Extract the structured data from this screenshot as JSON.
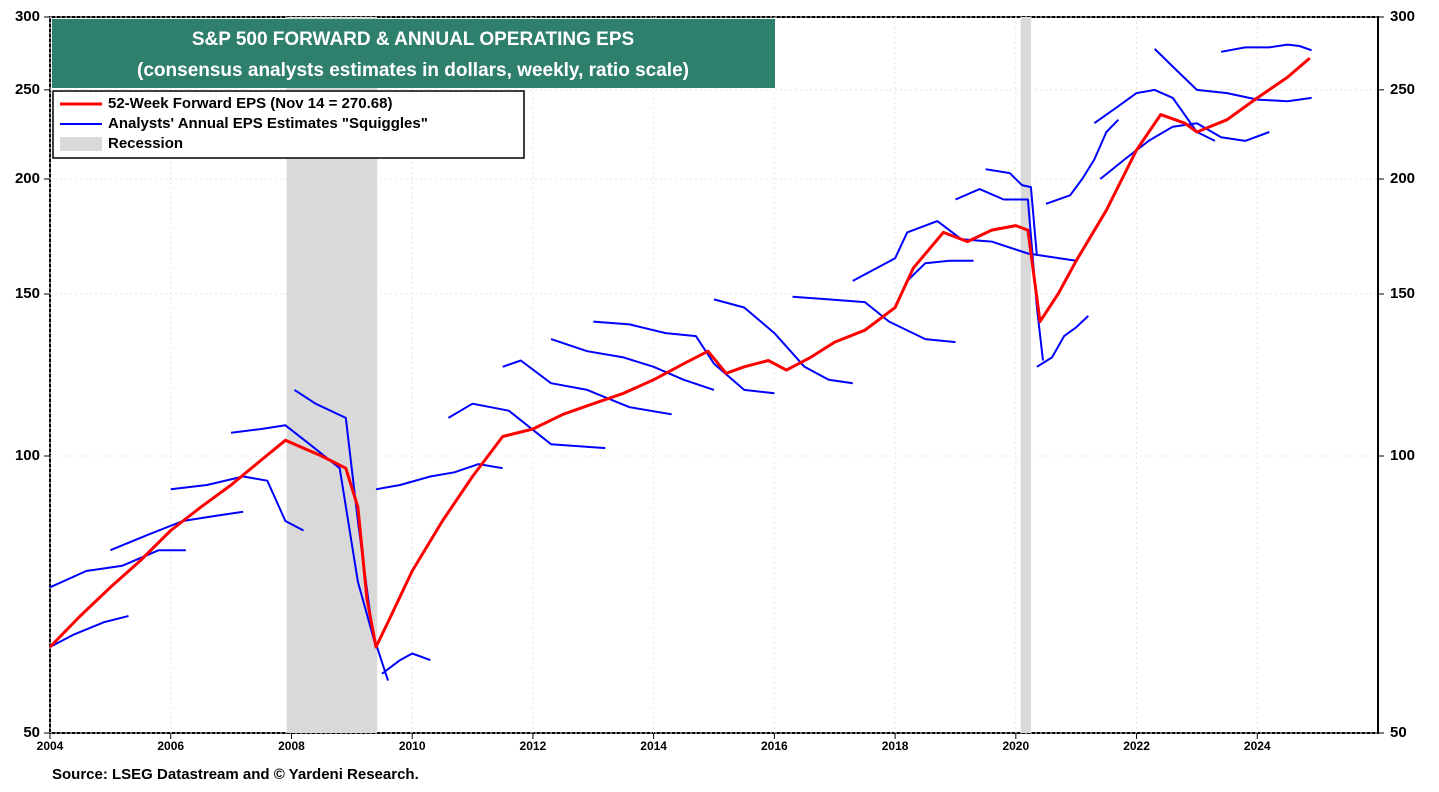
{
  "chart_data": {
    "type": "line",
    "title": "S&P 500 FORWARD & ANNUAL OPERATING EPS",
    "subtitle": "(consensus analysts estimates in dollars, weekly, ratio scale)",
    "source": "Source: LSEG Datastream and © Yardeni Research.",
    "log_scale": true,
    "grid": true,
    "xlim": [
      2004,
      2026
    ],
    "xticks": [
      2004,
      2006,
      2008,
      2010,
      2012,
      2014,
      2016,
      2018,
      2020,
      2022,
      2024
    ],
    "ylim": [
      50,
      300
    ],
    "yticks": [
      50,
      100,
      150,
      200,
      250,
      300
    ],
    "recession_name": "Recession",
    "recession_color": "#d9d9d9",
    "recessions": [
      [
        2007.92,
        2009.42
      ],
      [
        2020.08,
        2020.25
      ]
    ],
    "series": [
      {
        "name": "52-Week Forward EPS (Nov 14 = 270.68)",
        "color": "#ff0000",
        "width": 3,
        "x": [
          2004.0,
          2004.5,
          2005.0,
          2005.5,
          2006.0,
          2006.5,
          2007.0,
          2007.5,
          2007.9,
          2008.2,
          2008.5,
          2008.9,
          2009.1,
          2009.25,
          2009.4,
          2009.6,
          2010.0,
          2010.5,
          2011.0,
          2011.5,
          2012.0,
          2012.5,
          2013.0,
          2013.5,
          2014.0,
          2014.5,
          2014.9,
          2015.2,
          2015.5,
          2015.9,
          2016.2,
          2016.6,
          2017.0,
          2017.5,
          2018.0,
          2018.3,
          2018.8,
          2019.2,
          2019.6,
          2020.0,
          2020.2,
          2020.4,
          2020.7,
          2021.0,
          2021.5,
          2022.0,
          2022.4,
          2022.8,
          2023.0,
          2023.5,
          2024.0,
          2024.5,
          2024.87
        ],
        "values": [
          62,
          67,
          72,
          77,
          83,
          88,
          93,
          99,
          104,
          102,
          100,
          97,
          88,
          70,
          62,
          66,
          75,
          85,
          95,
          105,
          107,
          111,
          114,
          117,
          121,
          126,
          130,
          123,
          125,
          127,
          124,
          128,
          133,
          137,
          145,
          160,
          175,
          171,
          176,
          178,
          176,
          140,
          150,
          163,
          185,
          215,
          235,
          230,
          225,
          232,
          245,
          258,
          270.68
        ]
      },
      {
        "name": "Analysts' Annual EPS Estimates \"Squiggles\"",
        "color": "#0000ff",
        "width": 2,
        "x": [
          2004.0,
          2004.4,
          2004.9,
          2005.3,
          2004.0,
          2004.0,
          2004.6,
          2005.2,
          2005.8,
          2006.25,
          2005.0,
          2005.0,
          2005.6,
          2006.2,
          2006.7,
          2007.2,
          2006.0,
          2006.0,
          2006.6,
          2007.2,
          2007.6,
          2007.9,
          2008.2,
          2007.0,
          2007.0,
          2007.5,
          2007.9,
          2008.3,
          2008.8,
          2009.1,
          2009.4,
          2008.05,
          2008.05,
          2008.4,
          2008.9,
          2009.1,
          2009.35,
          2009.6,
          2009.5,
          2009.5,
          2009.8,
          2010.0,
          2010.3,
          2009.4,
          2009.4,
          2009.8,
          2010.3,
          2010.7,
          2011.1,
          2011.5,
          2010.6,
          2010.6,
          2011.0,
          2011.6,
          2012.3,
          2013.2,
          2011.5,
          2011.5,
          2011.8,
          2012.3,
          2012.9,
          2013.6,
          2014.3,
          2012.3,
          2012.3,
          2012.9,
          2013.5,
          2014.0,
          2014.5,
          2015.0,
          2013.0,
          2013.0,
          2013.6,
          2014.2,
          2014.7,
          2015.0,
          2015.5,
          2016.0,
          2015.0,
          2015.0,
          2015.5,
          2016.0,
          2016.5,
          2016.9,
          2017.3,
          2016.3,
          2016.3,
          2016.9,
          2017.5,
          2017.9,
          2018.5,
          2019.0,
          2017.3,
          2017.3,
          2018.0,
          2018.2,
          2018.7,
          2019.1,
          2019.6,
          2020.2,
          2021.0,
          2018.2,
          2018.2,
          2018.5,
          2018.9,
          2019.3,
          2019.0,
          2019.0,
          2019.4,
          2019.8,
          2020.2,
          2020.35,
          2020.45,
          2019.5,
          2019.5,
          2019.9,
          2020.1,
          2020.25,
          2020.35,
          2020.35,
          2020.35,
          2020.6,
          2020.8,
          2021.0,
          2021.2,
          2020.5,
          2020.5,
          2020.9,
          2021.1,
          2021.3,
          2021.5,
          2021.7,
          2021.3,
          2021.3,
          2021.7,
          2022.0,
          2022.3,
          2022.6,
          2023.0,
          2023.3,
          2022.3,
          2022.3,
          2022.6,
          2023.0,
          2023.5,
          2024.0,
          2024.5,
          2024.9,
          2021.4,
          2021.4,
          2021.8,
          2022.2,
          2022.6,
          2023.0,
          2023.4,
          2023.8,
          2024.2,
          2023.4,
          2023.4,
          2023.8,
          2024.2,
          2024.5,
          2024.7,
          2024.9
        ],
        "values": [
          62,
          64,
          66,
          67,
          null,
          72,
          75,
          76,
          79,
          79,
          null,
          79,
          82,
          85,
          86,
          87,
          null,
          92,
          93,
          95,
          94,
          85,
          83,
          null,
          106,
          107,
          108,
          103,
          97,
          73,
          62,
          null,
          118,
          114,
          110,
          85,
          64,
          57,
          null,
          58,
          60,
          61,
          60,
          null,
          92,
          93,
          95,
          96,
          98,
          97,
          null,
          110,
          114,
          112,
          103,
          102,
          null,
          125,
          127,
          120,
          118,
          113,
          111,
          null,
          134,
          130,
          128,
          125,
          121,
          118,
          null,
          140,
          139,
          136,
          135,
          126,
          118,
          117,
          null,
          148,
          145,
          136,
          125,
          121,
          120,
          null,
          149,
          148,
          147,
          140,
          134,
          133,
          null,
          155,
          164,
          175,
          180,
          172,
          171,
          166,
          163,
          null,
          155,
          162,
          163,
          163,
          null,
          190,
          195,
          190,
          190,
          145,
          127,
          null,
          205,
          203,
          197,
          196,
          165,
          null,
          125,
          128,
          135,
          138,
          142,
          null,
          188,
          192,
          200,
          210,
          225,
          232,
          null,
          230,
          240,
          248,
          250,
          245,
          225,
          220,
          null,
          277,
          265,
          250,
          248,
          244,
          243,
          245,
          null,
          200,
          210,
          220,
          228,
          230,
          222,
          220,
          225,
          null,
          275,
          278,
          278,
          280,
          279,
          276
        ]
      }
    ]
  }
}
